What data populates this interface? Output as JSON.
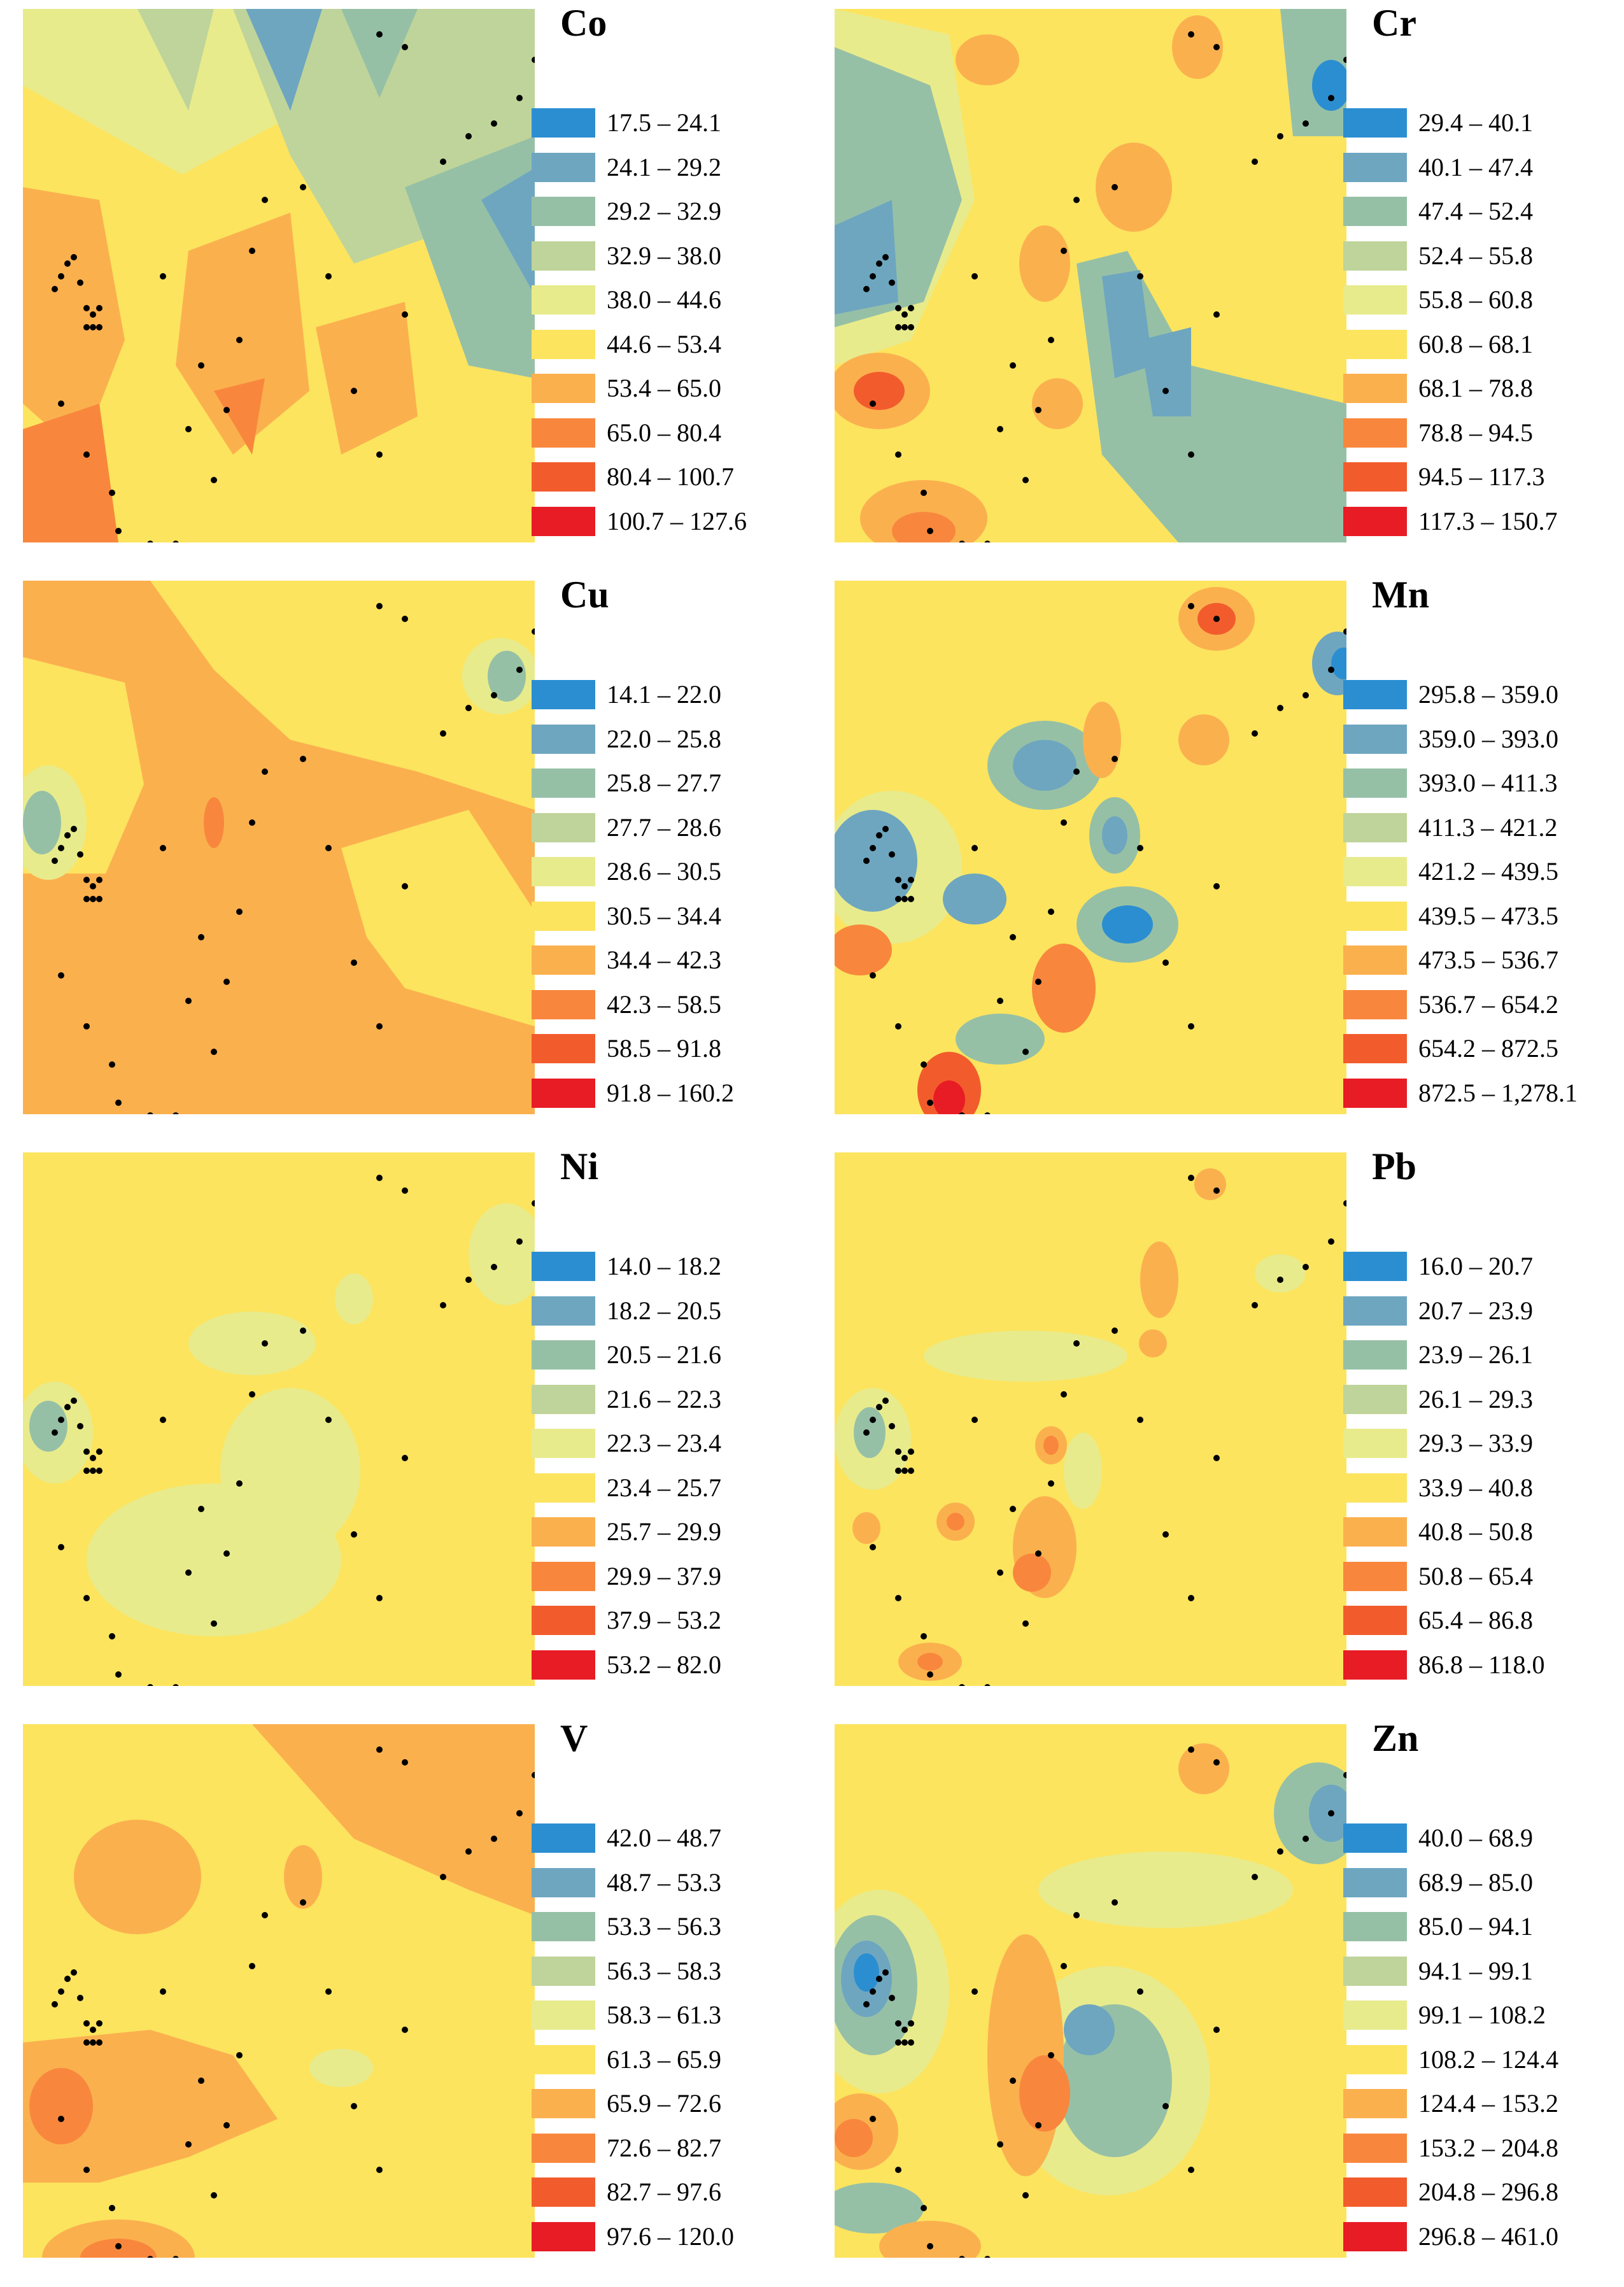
{
  "colors": [
    "#2b8ed1",
    "#6ea6c0",
    "#96c0a6",
    "#bfd49a",
    "#e8eb8c",
    "#fce45e",
    "#fbb04e",
    "#f8873d",
    "#f25c2c",
    "#e81c25"
  ],
  "panels": [
    {
      "element": "Co",
      "legend": [
        "17.5 – 24.1",
        "24.1 – 29.2",
        "29.2 – 32.9",
        "32.9 – 38.0",
        "38.0 – 44.6",
        "44.6 – 53.4",
        "53.4 – 65.0",
        "65.0 – 80.4",
        "80.4 – 100.7",
        "100.7 – 127.6"
      ]
    },
    {
      "element": "Cr",
      "legend": [
        "29.4 – 40.1",
        "40.1 – 47.4",
        "47.4 – 52.4",
        "52.4 – 55.8",
        "55.8 – 60.8",
        "60.8 – 68.1",
        "68.1 – 78.8",
        "78.8 – 94.5",
        "94.5 – 117.3",
        "117.3 – 150.7"
      ]
    },
    {
      "element": "Cu",
      "legend": [
        "14.1 – 22.0",
        "22.0 – 25.8",
        "25.8 – 27.7",
        "27.7 – 28.6",
        "28.6 – 30.5",
        "30.5 – 34.4",
        "34.4 – 42.3",
        "42.3 – 58.5",
        "58.5 – 91.8",
        "91.8 – 160.2"
      ]
    },
    {
      "element": "Mn",
      "legend": [
        "295.8 – 359.0",
        "359.0 – 393.0",
        "393.0 – 411.3",
        "411.3 – 421.2",
        "421.2 – 439.5",
        "439.5 – 473.5",
        "473.5 – 536.7",
        "536.7 – 654.2",
        "654.2 – 872.5",
        "872.5 – 1,278.1"
      ]
    },
    {
      "element": "Ni",
      "legend": [
        "14.0 – 18.2",
        "18.2 – 20.5",
        "20.5 – 21.6",
        "21.6 – 22.3",
        "22.3 – 23.4",
        "23.4 – 25.7",
        "25.7 – 29.9",
        "29.9 – 37.9",
        "37.9 – 53.2",
        "53.2 – 82.0"
      ]
    },
    {
      "element": "Pb",
      "legend": [
        "16.0 – 20.7",
        "20.7 – 23.9",
        "23.9 – 26.1",
        "26.1 – 29.3",
        "29.3 – 33.9",
        "33.9 – 40.8",
        "40.8 – 50.8",
        "50.8 – 65.4",
        "65.4 – 86.8",
        "86.8 – 118.0"
      ]
    },
    {
      "element": "V",
      "legend": [
        "42.0 – 48.7",
        "48.7 – 53.3",
        "53.3 – 56.3",
        "56.3 – 58.3",
        "58.3 – 61.3",
        "61.3 – 65.9",
        "65.9 – 72.6",
        "72.6 – 82.7",
        "82.7 – 97.6",
        "97.6 – 120.0"
      ]
    },
    {
      "element": "Zn",
      "legend": [
        "40.0 – 68.9",
        "68.9 – 85.0",
        "85.0 – 94.1",
        "94.1 – 99.1",
        "99.1 – 108.2",
        "108.2 – 124.4",
        "124.4 – 153.2",
        "153.2 – 204.8",
        "204.8 – 296.8",
        "296.8 – 461.0"
      ]
    }
  ]
}
